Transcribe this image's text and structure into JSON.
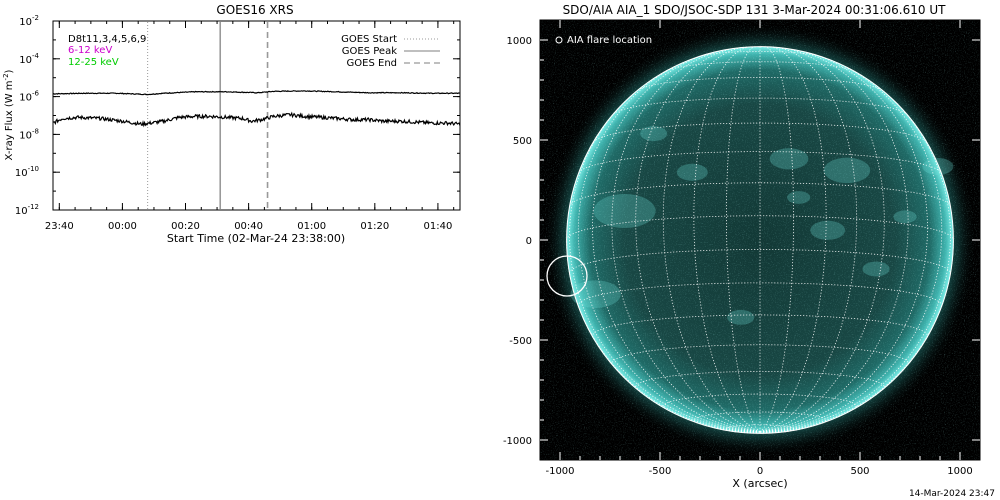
{
  "chart_data": [
    {
      "type": "line",
      "title": "GOES16 XRS",
      "xlabel": "Start Time (02-Mar-24 23:38:00)",
      "ylabel_main": "X-ray Flux (W m",
      "ylabel_sup": "-2",
      "ylabel_end": ")",
      "yscale": "log",
      "ylim": [
        1e-12,
        0.01
      ],
      "xlim_minutes": [
        0,
        129
      ],
      "x_ticks": [
        {
          "m": 2,
          "label": "23:40"
        },
        {
          "m": 22,
          "label": "00:00"
        },
        {
          "m": 42,
          "label": "00:20"
        },
        {
          "m": 62,
          "label": "00:40"
        },
        {
          "m": 82,
          "label": "01:00"
        },
        {
          "m": 102,
          "label": "01:20"
        },
        {
          "m": 122,
          "label": "01:40"
        }
      ],
      "y_ticks": [
        {
          "exp": -2,
          "base": "10",
          "sup": "-2"
        },
        {
          "exp": -4,
          "base": "10",
          "sup": "-4"
        },
        {
          "exp": -6,
          "base": "10",
          "sup": "-6"
        },
        {
          "exp": -8,
          "base": "10",
          "sup": "-8"
        },
        {
          "exp": -10,
          "base": "10",
          "sup": "-10"
        },
        {
          "exp": -12,
          "base": "10",
          "sup": "-12"
        }
      ],
      "channel_labels": [
        {
          "text": "D8t11,3,4,5,6,9",
          "color": "#000000"
        },
        {
          "text": "6-12 keV",
          "color": "#cc00cc"
        },
        {
          "text": "12-25 keV",
          "color": "#00cc00"
        }
      ],
      "legend": [
        {
          "label": "GOES Start",
          "style": "dotted"
        },
        {
          "label": "GOES Peak",
          "style": "solid"
        },
        {
          "label": "GOES End",
          "style": "dashed"
        }
      ],
      "event_lines": {
        "start_m": 30,
        "peak_m": 53,
        "end_m": 68
      },
      "series": [
        {
          "channel": "long",
          "x": [
            0,
            10,
            20,
            25,
            30,
            35,
            45,
            55,
            60,
            65,
            70,
            80,
            90,
            100,
            110,
            120,
            129
          ],
          "y": [
            1.4e-06,
            1.5e-06,
            1.5e-06,
            1.4e-06,
            1.3e-06,
            1.5e-06,
            1.8e-06,
            1.8e-06,
            1.7e-06,
            1.6e-06,
            1.9e-06,
            2e-06,
            1.8e-06,
            1.6e-06,
            1.6e-06,
            1.5e-06,
            1.5e-06
          ]
        },
        {
          "channel": "short",
          "x": [
            0,
            3,
            8,
            15,
            22,
            28,
            31,
            35,
            40,
            45,
            50,
            55,
            60,
            63,
            66,
            70,
            75,
            80,
            85,
            90,
            95,
            100,
            105,
            110,
            115,
            120,
            125,
            129
          ],
          "y": [
            4e-08,
            7e-08,
            8e-08,
            7e-08,
            5e-08,
            3.5e-08,
            4e-08,
            5e-08,
            8e-08,
            9e-08,
            9e-08,
            8e-08,
            7e-08,
            5e-08,
            6e-08,
            9e-08,
            1.1e-07,
            9e-08,
            8e-08,
            7e-08,
            6e-08,
            6e-08,
            5e-08,
            5e-08,
            4.5e-08,
            4e-08,
            4e-08,
            3.5e-08
          ]
        }
      ]
    },
    {
      "type": "heatmap",
      "title": "SDO/AIA AIA_1 SDO/JSOC-SDP 131  3-Mar-2024 00:31:06.610 UT",
      "xlabel": "X (arcsec)",
      "xlim": [
        -1100,
        1100
      ],
      "ylim": [
        -1100,
        1100
      ],
      "x_ticks": [
        -1000,
        -500,
        0,
        500,
        1000
      ],
      "y_ticks": [
        -1000,
        -500,
        0,
        500,
        1000
      ],
      "legend_label": "AIA flare location",
      "solar_radius_arcsec": 967,
      "flare_location": {
        "x": -965,
        "y": -180
      },
      "grid_step_deg": 10
    }
  ],
  "footer": {
    "timestamp": "14-Mar-2024 23:47"
  },
  "colors": {
    "sun_base": "#16413f",
    "sun_limb": "#5fdad5",
    "grid": "#ffffff",
    "background": "#000000"
  }
}
